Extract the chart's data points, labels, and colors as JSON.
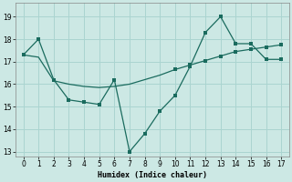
{
  "xlabel": "Humidex (Indice chaleur)",
  "bg_color": "#cce8e4",
  "grid_color": "#aad4d0",
  "line_color": "#1a6b5e",
  "xlim": [
    -0.5,
    17.5
  ],
  "ylim": [
    12.8,
    19.6
  ],
  "yticks": [
    13,
    14,
    15,
    16,
    17,
    18,
    19
  ],
  "xticks": [
    0,
    1,
    2,
    3,
    4,
    5,
    6,
    7,
    8,
    9,
    10,
    11,
    12,
    13,
    14,
    15,
    16,
    17
  ],
  "line1_x": [
    0,
    1,
    2,
    3,
    4,
    5,
    6,
    7,
    8,
    9,
    10,
    11,
    12,
    13,
    14,
    15,
    16,
    17
  ],
  "line1_y": [
    17.3,
    18.0,
    16.2,
    15.3,
    15.2,
    15.1,
    16.2,
    13.0,
    13.8,
    14.8,
    15.5,
    16.8,
    18.3,
    19.0,
    17.8,
    17.8,
    17.1,
    17.1
  ],
  "line1_markers_x": [
    0,
    1,
    2,
    3,
    4,
    5,
    6,
    7,
    8,
    9,
    10,
    11,
    12,
    13,
    14,
    15,
    16,
    17
  ],
  "line1_markers_y": [
    17.3,
    18.0,
    16.2,
    15.3,
    15.2,
    15.1,
    16.2,
    13.0,
    13.8,
    14.8,
    15.5,
    16.8,
    18.3,
    19.0,
    17.8,
    17.8,
    17.1,
    17.1
  ],
  "line2_x": [
    0,
    1,
    2,
    3,
    4,
    5,
    6,
    7,
    8,
    9,
    10,
    11,
    12,
    13,
    14,
    15,
    16,
    17
  ],
  "line2_y": [
    17.3,
    17.2,
    16.15,
    16.0,
    15.9,
    15.85,
    15.9,
    16.0,
    16.2,
    16.4,
    16.65,
    16.85,
    17.05,
    17.25,
    17.45,
    17.55,
    17.65,
    17.75
  ],
  "line2_markers_x": [
    0,
    10,
    11,
    12,
    13,
    14,
    15,
    16,
    17
  ],
  "line2_markers_y": [
    17.3,
    16.65,
    16.85,
    17.05,
    17.25,
    17.45,
    17.55,
    17.65,
    17.75
  ]
}
